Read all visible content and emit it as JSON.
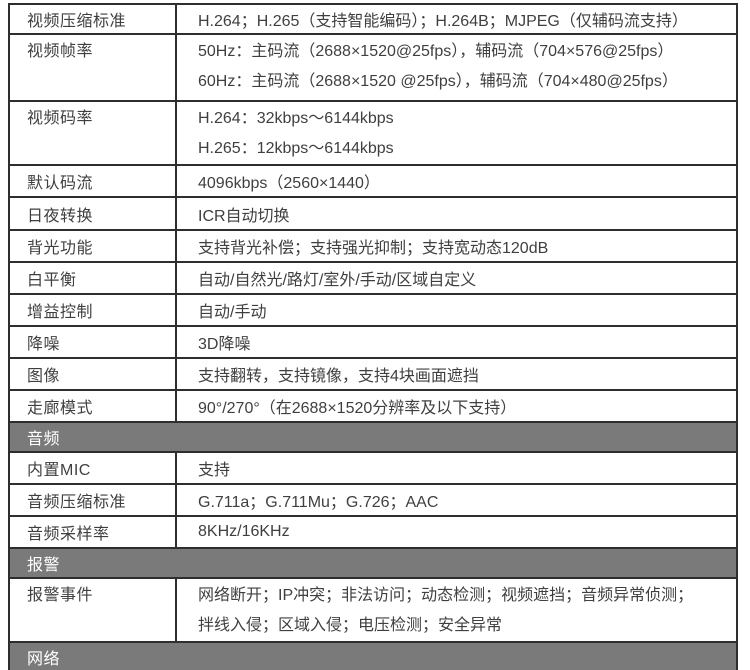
{
  "colors": {
    "section_header_bg": "#7a7a7a",
    "section_header_text": "#ffffff",
    "border": "#2e2e2e",
    "body_text": "#3f3f3f",
    "row_bg": "#ffffff"
  },
  "table": {
    "rows": [
      {
        "type": "data",
        "label": "视频压缩标准",
        "lines": [
          "H.264；H.265（支持智能编码）；H.264B；MJPEG（仅辅码流支持）"
        ]
      },
      {
        "type": "data",
        "label": "视频帧率",
        "lines": [
          "50Hz：主码流（2688×1520@25fps），辅码流（704×576@25fps）",
          "60Hz：主码流（2688×1520 @25fps），辅码流（704×480@25fps）"
        ]
      },
      {
        "type": "data",
        "label": "视频码率",
        "lines": [
          "H.264：32kbps～6144kbps",
          "H.265：12kbps～6144kbps"
        ]
      },
      {
        "type": "data",
        "label": "默认码流",
        "lines": [
          "4096kbps（2560×1440）"
        ]
      },
      {
        "type": "data",
        "label": "日夜转换",
        "lines": [
          "ICR自动切换"
        ]
      },
      {
        "type": "data",
        "label": "背光功能",
        "lines": [
          "支持背光补偿；支持强光抑制；支持宽动态120dB"
        ]
      },
      {
        "type": "data",
        "label": "白平衡",
        "lines": [
          "自动/自然光/路灯/室外/手动/区域自定义"
        ]
      },
      {
        "type": "data",
        "label": "增益控制",
        "lines": [
          "自动/手动"
        ]
      },
      {
        "type": "data",
        "label": "降噪",
        "lines": [
          "3D降噪"
        ]
      },
      {
        "type": "data",
        "label": "图像",
        "lines": [
          "支持翻转，支持镜像，支持4块画面遮挡"
        ]
      },
      {
        "type": "data",
        "label": "走廊模式",
        "lines": [
          "90°/270°（在2688×1520分辨率及以下支持）"
        ]
      },
      {
        "type": "section",
        "label": "音频"
      },
      {
        "type": "data",
        "label": "内置MIC",
        "lines": [
          "支持"
        ]
      },
      {
        "type": "data",
        "label": "音频压缩标准",
        "lines": [
          "G.711a；G.711Mu；G.726；AAC"
        ]
      },
      {
        "type": "data",
        "label": "音频采样率",
        "lines": [
          "8KHz/16KHz"
        ]
      },
      {
        "type": "section",
        "label": "报警"
      },
      {
        "type": "data",
        "label": "报警事件",
        "lines": [
          "网络断开；IP冲突；非法访问；动态检测；视频遮挡；音频异常侦测；",
          "拌线入侵；区域入侵；电压检测；安全异常"
        ]
      },
      {
        "type": "section",
        "label": "网络"
      }
    ]
  }
}
